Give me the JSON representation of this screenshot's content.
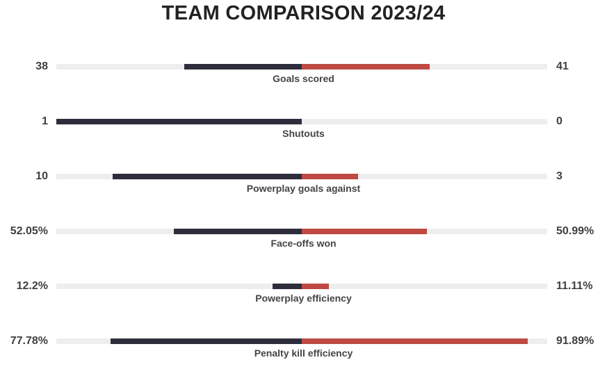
{
  "chart_data": {
    "type": "bar",
    "title": "TEAM COMPARISON 2023/24",
    "layout": "diverging-comparison",
    "colors": {
      "left_team": "#2e2d3c",
      "right_team": "#be4a43",
      "track": "#eeeeee"
    },
    "rows": [
      {
        "label": "Goals scored",
        "left": 38,
        "right": 41,
        "left_label": "38",
        "right_label": "41",
        "left_fraction": 0.48,
        "right_fraction": 0.52
      },
      {
        "label": "Shutouts",
        "left": 1,
        "right": 0,
        "left_label": "1",
        "right_label": "0",
        "left_fraction": 1.0,
        "right_fraction": 0.0
      },
      {
        "label": "Powerplay goals against",
        "left": 10,
        "right": 3,
        "left_label": "10",
        "right_label": "3",
        "left_fraction": 0.77,
        "right_fraction": 0.23
      },
      {
        "label": "Face-offs won",
        "left": 52.05,
        "right": 50.99,
        "left_label": "52.05%",
        "right_label": "50.99%",
        "left_fraction": 0.52,
        "right_fraction": 0.51
      },
      {
        "label": "Powerplay efficiency",
        "left": 12.2,
        "right": 11.11,
        "left_label": "12.2%",
        "right_label": "11.11%",
        "left_fraction": 0.12,
        "right_fraction": 0.11
      },
      {
        "label": "Penalty kill efficiency",
        "left": 77.78,
        "right": 91.89,
        "left_label": "77.78%",
        "right_label": "91.89%",
        "left_fraction": 0.78,
        "right_fraction": 0.92
      }
    ]
  }
}
